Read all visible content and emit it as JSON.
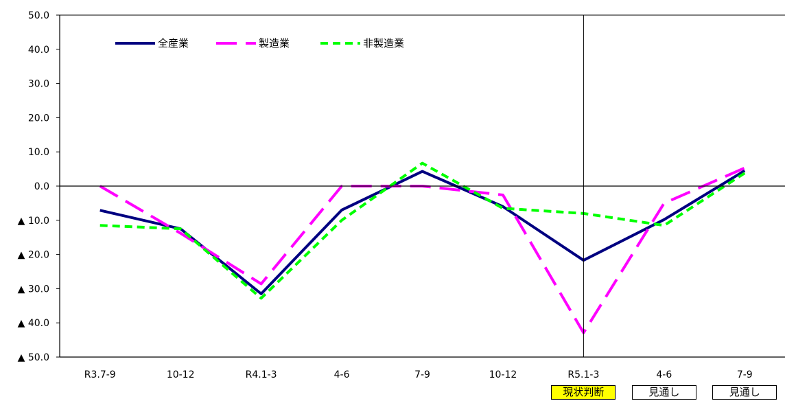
{
  "chart_data": {
    "type": "line",
    "categories": [
      "R3.7-9",
      "10-12",
      "R4.1-3",
      "4-6",
      "7-9",
      "10-12",
      "R5.1-3",
      "4-6",
      "7-9"
    ],
    "ylim": [
      -50,
      50
    ],
    "y_ticks": [
      {
        "value": 50,
        "label": "50.0"
      },
      {
        "value": 40,
        "label": "40.0"
      },
      {
        "value": 30,
        "label": "30.0"
      },
      {
        "value": 20,
        "label": "20.0"
      },
      {
        "value": 10,
        "label": "10.0"
      },
      {
        "value": 0,
        "label": "0.0"
      },
      {
        "value": -10,
        "label": "▲ 10.0"
      },
      {
        "value": -20,
        "label": "▲ 20.0"
      },
      {
        "value": -30,
        "label": "▲ 30.0"
      },
      {
        "value": -40,
        "label": "▲ 40.0"
      },
      {
        "value": -50,
        "label": "▲ 50.0"
      }
    ],
    "series": [
      {
        "name": "全産業",
        "color": "#000080",
        "style": "solid",
        "values": [
          -7.1,
          -12.5,
          -31.5,
          -7.0,
          4.3,
          -6.0,
          -21.7,
          -9.8,
          4.5
        ]
      },
      {
        "name": "製造業",
        "color": "#ff00ff",
        "style": "long-dash",
        "values": [
          0.0,
          -13.8,
          -28.6,
          0.0,
          0.0,
          -2.6,
          -42.9,
          -5.0,
          5.3
        ]
      },
      {
        "name": "非製造業",
        "color": "#00ff00",
        "style": "short-dash",
        "values": [
          -11.5,
          -12.5,
          -32.8,
          -10.0,
          6.7,
          -6.5,
          -8.0,
          -11.5,
          3.8
        ]
      }
    ],
    "legend_position": "top-left",
    "grid": false,
    "reference_line_after": "R5.1-3",
    "period_tags": [
      {
        "label": "現状判断",
        "category_index": 6,
        "highlight": true
      },
      {
        "label": "見通し",
        "category_index": 7,
        "highlight": false
      },
      {
        "label": "見通し",
        "category_index": 8,
        "highlight": false
      }
    ]
  }
}
